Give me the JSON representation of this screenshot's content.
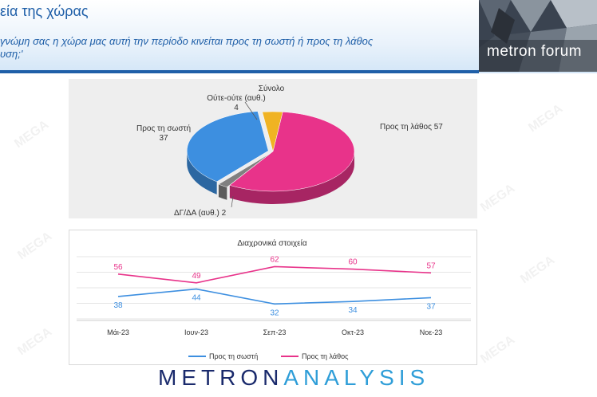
{
  "header": {
    "title": "εία της χώρας",
    "question_line1": "γνώμη σας η χώρα μας αυτή την περίοδο κινείται προς τη σωστή ή προς τη λάθος",
    "question_line2": "υση;'",
    "logo_text": "metron forum"
  },
  "pie": {
    "title": "Σύνολο",
    "slices": [
      {
        "label": "Προς τη λάθος",
        "value": 57,
        "color": "#e8338a"
      },
      {
        "label": "ΔΓ/ΔΑ (αυθ.)",
        "value": 2,
        "color": "#808080"
      },
      {
        "label": "Προς τη σωστή",
        "value": 37,
        "color": "#3d8fe0"
      },
      {
        "label": "Ούτε-ούτε (αυθ.)",
        "value": 4,
        "color": "#f0b323"
      }
    ],
    "label_wrong": "Προς τη λάθος 57",
    "label_right_name": "Προς τη σωστή",
    "label_right_value": "37",
    "label_neither_name": "Ούτε-ούτε (αυθ.)",
    "label_neither_value": "4",
    "label_dk": "ΔΓ/ΔΑ (αυθ.) 2"
  },
  "chart_data": {
    "type": "line",
    "title": "Διαχρονικά στοιχεία",
    "categories": [
      "Μάι-23",
      "Ιουν-23",
      "Σεπ-23",
      "Οκτ-23",
      "Νοε-23"
    ],
    "series": [
      {
        "name": "Προς τη σωστή",
        "values": [
          38,
          44,
          32,
          34,
          37
        ],
        "color": "#3d8fe0"
      },
      {
        "name": "Προς τη λάθος",
        "values": [
          56,
          49,
          62,
          60,
          57
        ],
        "color": "#e8338a"
      }
    ],
    "legend": "bottom",
    "grid": "horizontal"
  },
  "brand": {
    "part1": "METRON",
    "part2": "ANALYSIS"
  },
  "watermark": "MEGA"
}
